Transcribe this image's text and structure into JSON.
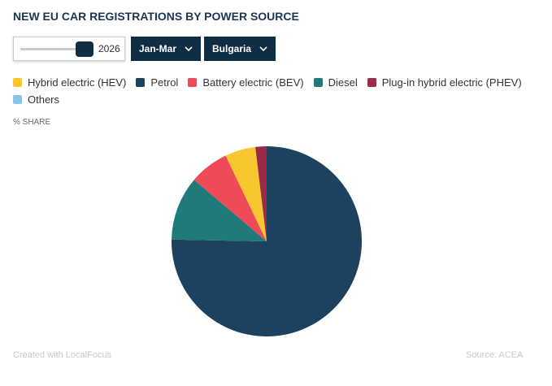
{
  "chart_data": {
    "type": "pie",
    "title": "NEW EU CAR REGISTRATIONS BY POWER SOURCE",
    "controls": {
      "year": "2026",
      "period": "Jan-Mar",
      "country": "Bulgaria"
    },
    "axis_label": "% SHARE",
    "series": [
      {
        "name": "Petrol",
        "color": "#1c4260",
        "values": [
          75.3
        ]
      },
      {
        "name": "Diesel",
        "color": "#1f7a78",
        "values": [
          10.9
        ]
      },
      {
        "name": "Battery electric (BEV)",
        "color": "#ee4a58",
        "values": [
          6.7
        ]
      },
      {
        "name": "Hybrid electric (HEV)",
        "color": "#f8c62f",
        "values": [
          5.2
        ]
      },
      {
        "name": "Plug-in hybrid electric (PHEV)",
        "color": "#9a2b48",
        "values": [
          1.9
        ]
      },
      {
        "name": "Others",
        "color": "#8cc4e4",
        "values": [
          0
        ]
      }
    ],
    "credit": "Created with LocalFocus",
    "source": "Source:  ACEA"
  }
}
